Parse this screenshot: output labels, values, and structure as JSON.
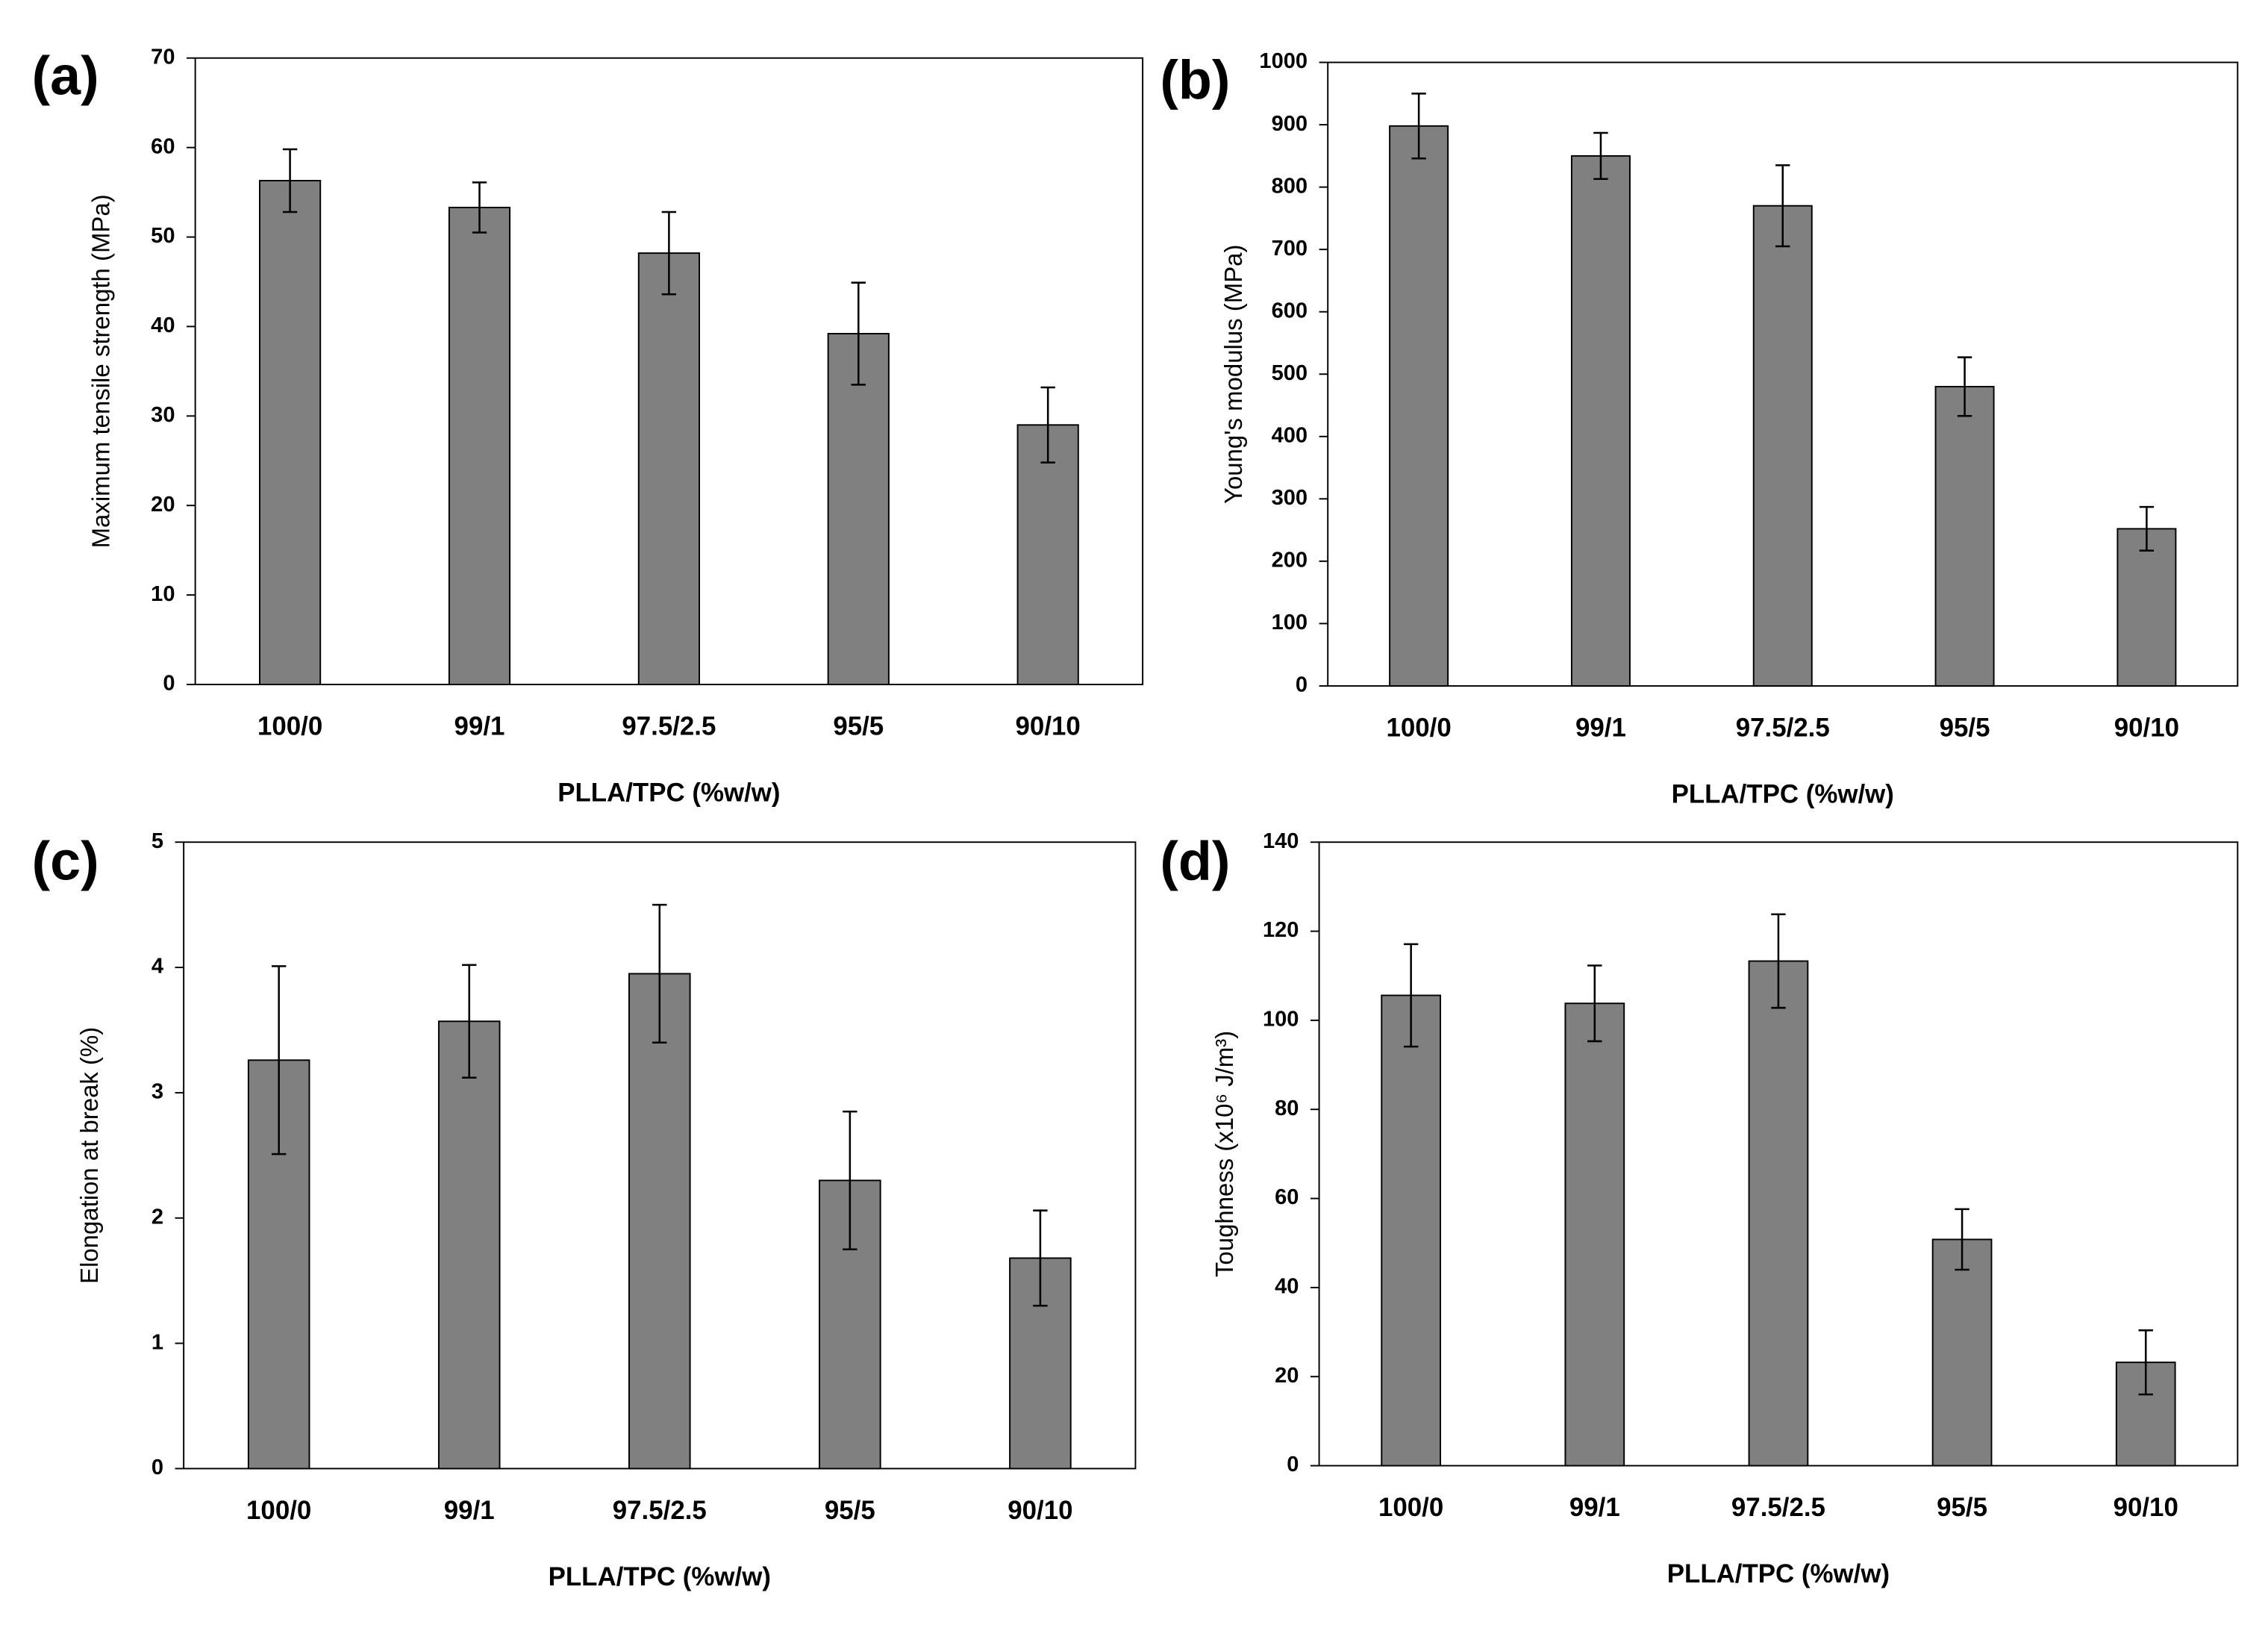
{
  "chart_data": [
    {
      "type": "bar",
      "panel": "(a)",
      "ylabel": "Maximum tensile strength (MPa)",
      "xlabel": "PLLA/TPC (%w/w)",
      "categories": [
        "100/0",
        "99/1",
        "97.5/2.5",
        "95/5",
        "90/10"
      ],
      "values": [
        56.3,
        53.3,
        48.2,
        39.2,
        29.0
      ],
      "errors": [
        3.5,
        2.8,
        4.6,
        5.7,
        4.2
      ],
      "color": "#808080",
      "ylim": [
        0,
        70
      ],
      "yticks": [
        0,
        10,
        20,
        30,
        40,
        50,
        60,
        70
      ]
    },
    {
      "type": "bar",
      "panel": "(b)",
      "ylabel": "Young's modulus (MPa)",
      "xlabel": "PLLA/TPC (%w/w)",
      "categories": [
        "100/0",
        "99/1",
        "97.5/2.5",
        "95/5",
        "90/10"
      ],
      "values": [
        898,
        850,
        770,
        480,
        252
      ],
      "errors": [
        52,
        37,
        65,
        47,
        35
      ],
      "color": "#808080",
      "ylim": [
        0,
        1000
      ],
      "yticks": [
        0,
        100,
        200,
        300,
        400,
        500,
        600,
        700,
        800,
        900,
        1000
      ]
    },
    {
      "type": "bar",
      "panel": "(c)",
      "ylabel": "Elongation at break (%)",
      "xlabel": "PLLA/TPC (%w/w)",
      "categories": [
        "100/0",
        "99/1",
        "97.5/2.5",
        "95/5",
        "90/10"
      ],
      "values": [
        3.26,
        3.57,
        3.95,
        2.3,
        1.68
      ],
      "errors": [
        0.75,
        0.45,
        0.55,
        0.55,
        0.38
      ],
      "color": "#808080",
      "ylim": [
        0,
        5
      ],
      "yticks": [
        0,
        1,
        2,
        3,
        4,
        5
      ]
    },
    {
      "type": "bar",
      "panel": "(d)",
      "ylabel": "Toughness (x10⁶ J/m³)",
      "xlabel": "PLLA/TPC (%w/w)",
      "categories": [
        "100/0",
        "99/1",
        "97.5/2.5",
        "95/5",
        "90/10"
      ],
      "values": [
        105.6,
        103.8,
        113.3,
        50.8,
        23.2
      ],
      "errors": [
        11.5,
        8.5,
        10.5,
        6.8,
        7.2
      ],
      "color": "#808080",
      "ylim": [
        0,
        140
      ],
      "yticks": [
        0,
        20,
        40,
        60,
        80,
        100,
        120,
        140
      ]
    }
  ]
}
